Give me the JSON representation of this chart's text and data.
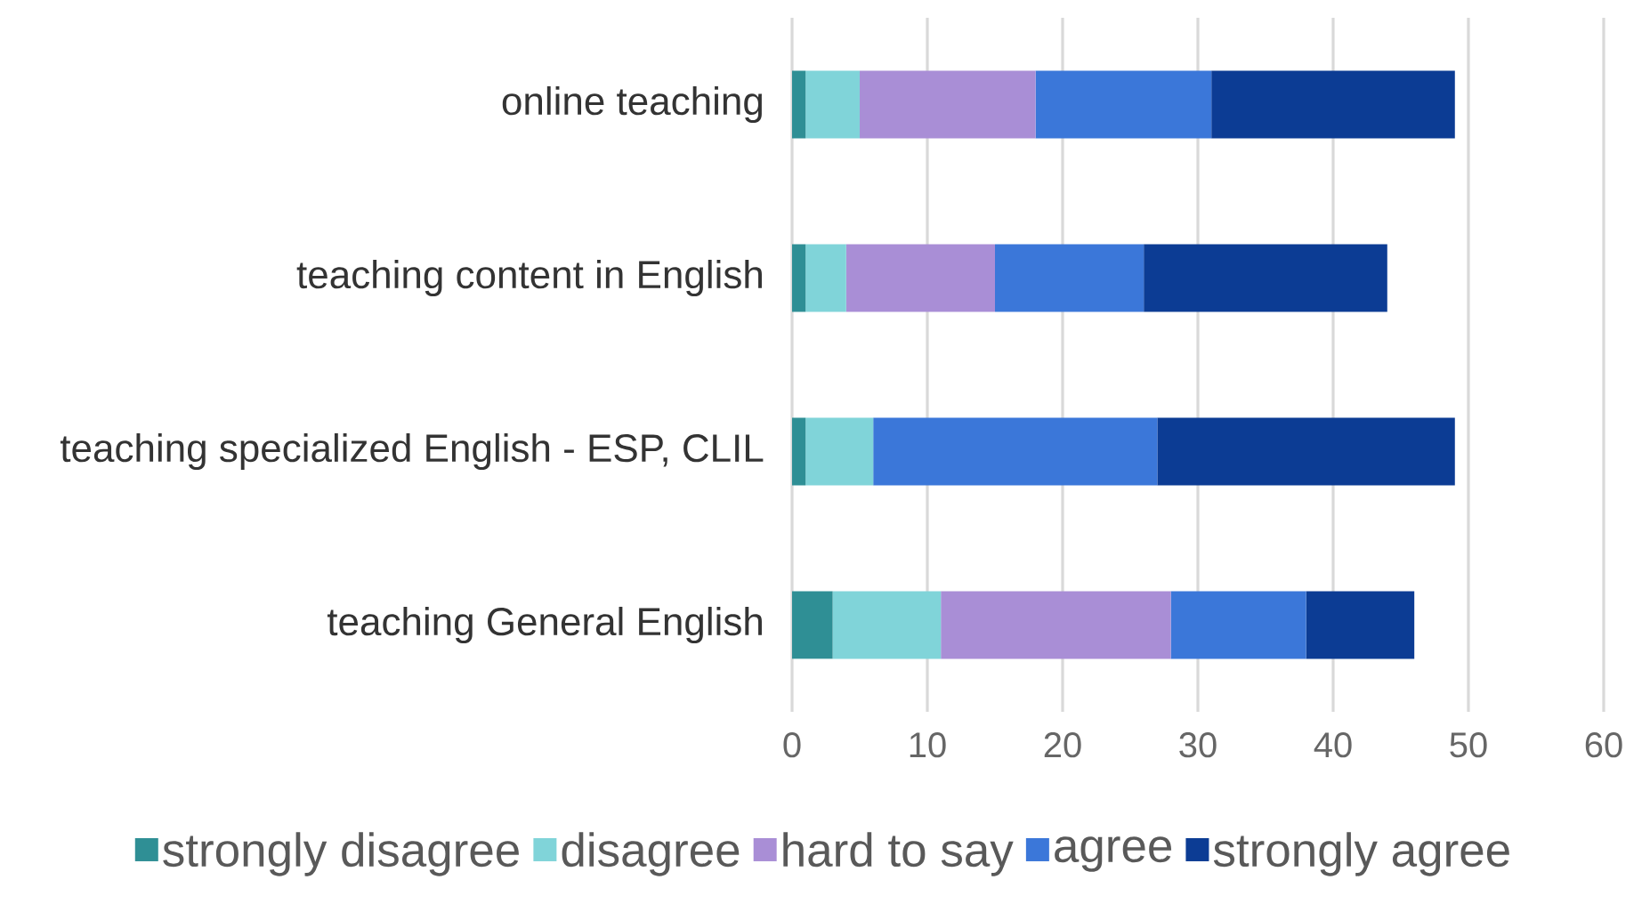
{
  "chart_data": {
    "type": "bar",
    "orientation": "horizontal",
    "stacked": true,
    "categories": [
      "online teaching",
      "teaching content in English",
      "teaching specialized English - ESP, CLIL",
      "teaching General English"
    ],
    "series": [
      {
        "name": "strongly disagree",
        "color": "#2f8f95",
        "values": [
          1,
          1,
          1,
          3
        ]
      },
      {
        "name": "disagree",
        "color": "#80d4d9",
        "values": [
          4,
          3,
          5,
          8
        ]
      },
      {
        "name": "hard to say",
        "color": "#a98ed6",
        "values": [
          13,
          11,
          0,
          17
        ]
      },
      {
        "name": "agree",
        "color": "#3b77d9",
        "values": [
          13,
          11,
          21,
          10
        ]
      },
      {
        "name": "strongly agree",
        "color": "#0c3c94",
        "values": [
          18,
          18,
          22,
          8
        ]
      }
    ],
    "xlim": [
      0,
      60
    ],
    "xticks": [
      0,
      10,
      20,
      30,
      40,
      50,
      60
    ],
    "grid": "x",
    "legend": "bottom"
  }
}
